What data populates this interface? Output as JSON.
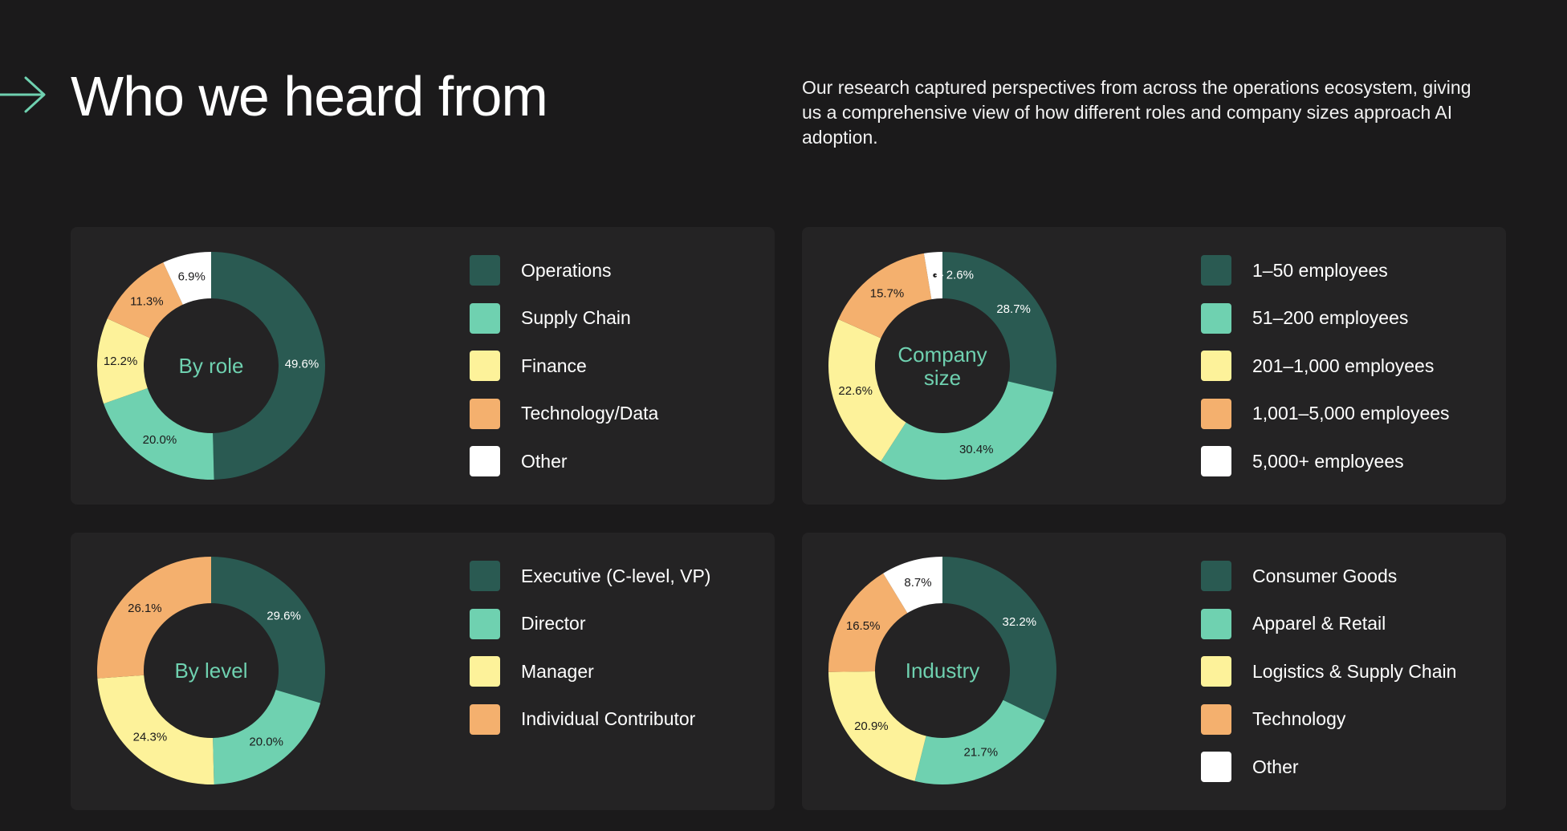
{
  "header": {
    "title": "Who we heard from",
    "intro": "Our research captured perspectives from across the operations ecosystem, giving us a comprehensive view of how different roles and company sizes approach AI adoption."
  },
  "colors": {
    "background": "#1b1a1b",
    "card": "#242324",
    "accent": "#6fd1b0",
    "dark_teal": "#2a5a52",
    "mint": "#6fd1b0",
    "yellow": "#fdf29a",
    "orange": "#f4b06e",
    "white": "#ffffff"
  },
  "chart_data": [
    {
      "type": "pie",
      "title": "By role",
      "categories": [
        "Operations",
        "Supply Chain",
        "Finance",
        "Technology/Data",
        "Other"
      ],
      "values": [
        49.6,
        20.0,
        12.2,
        11.3,
        6.9
      ],
      "labels": [
        "49.6%",
        "20.0%",
        "12.2%",
        "11.3%",
        "6.9%"
      ],
      "colors": [
        "#2a5a52",
        "#6fd1b0",
        "#fdf29a",
        "#f4b06e",
        "#ffffff"
      ],
      "legend": "right"
    },
    {
      "type": "pie",
      "title": "Company size",
      "categories": [
        "1–50 employees",
        "51–200 employees",
        "201–1,000 employees",
        "1,001–5,000 employees",
        "5,000+ employees"
      ],
      "values": [
        28.7,
        30.4,
        22.6,
        15.7,
        2.6
      ],
      "labels": [
        "28.7%",
        "30.4%",
        "22.6%",
        "15.7%",
        "2.6%"
      ],
      "colors": [
        "#2a5a52",
        "#6fd1b0",
        "#fdf29a",
        "#f4b06e",
        "#ffffff"
      ],
      "legend": "right"
    },
    {
      "type": "pie",
      "title": "By level",
      "categories": [
        "Executive (C-level, VP)",
        "Director",
        "Manager",
        "Individual Contributor"
      ],
      "values": [
        29.6,
        20.0,
        24.3,
        26.1
      ],
      "labels": [
        "29.6%",
        "20.0%",
        "24.3%",
        "26.1%"
      ],
      "colors": [
        "#2a5a52",
        "#6fd1b0",
        "#fdf29a",
        "#f4b06e"
      ],
      "legend": "right"
    },
    {
      "type": "pie",
      "title": "Industry",
      "categories": [
        "Consumer Goods",
        "Apparel & Retail",
        "Logistics & Supply Chain",
        "Technology",
        "Other"
      ],
      "values": [
        32.2,
        21.7,
        20.9,
        16.5,
        8.7
      ],
      "labels": [
        "32.2%",
        "21.7%",
        "20.9%",
        "16.5%",
        "8.7%"
      ],
      "colors": [
        "#2a5a52",
        "#6fd1b0",
        "#fdf29a",
        "#f4b06e",
        "#ffffff"
      ],
      "legend": "right"
    }
  ]
}
